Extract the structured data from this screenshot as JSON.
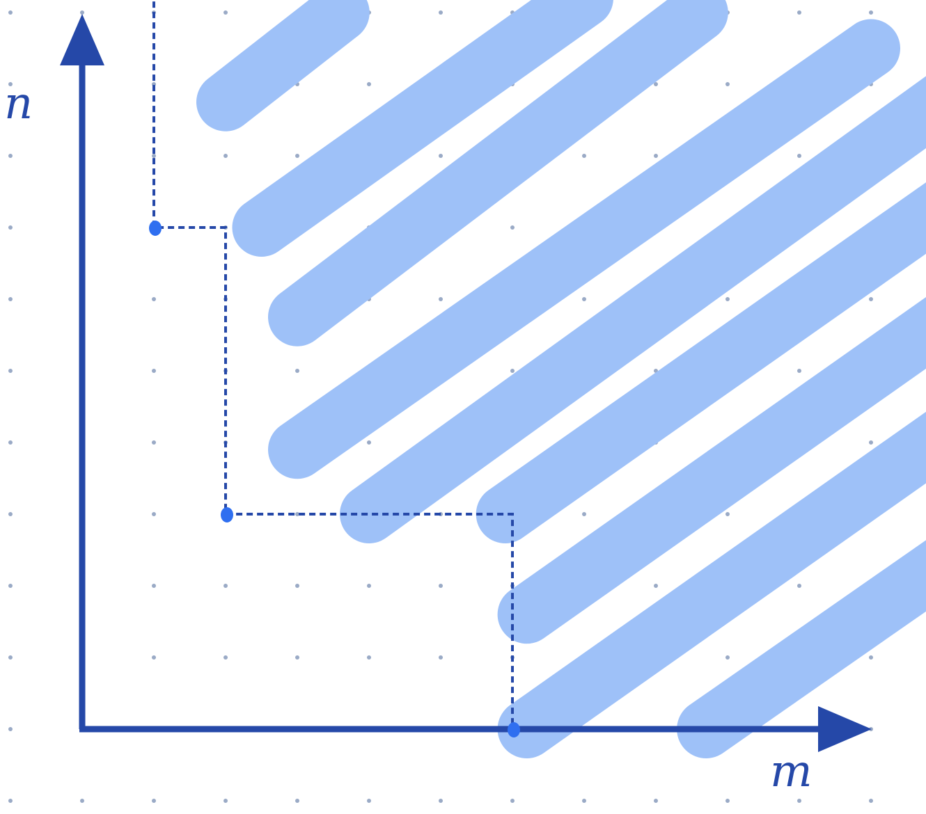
{
  "axes": {
    "vertical_label": "n",
    "horizontal_label": "m"
  },
  "grid": {
    "columns": 13,
    "rows": 12,
    "style": "dotted"
  },
  "colors": {
    "axis": "#2548a8",
    "band": "#9ec1f8",
    "grid_dot": "#9aaac6",
    "path": "#2548a8",
    "marker": "#2f6ff0",
    "background": "#ffffff"
  },
  "bands": [
    {
      "from": [
        2,
        8.75
      ],
      "to": [
        3.6,
        10
      ]
    },
    {
      "from": [
        2.5,
        7
      ],
      "to": [
        7,
        10.2
      ]
    },
    {
      "from": [
        3,
        5.75
      ],
      "to": [
        8.6,
        10
      ]
    },
    {
      "from": [
        3,
        3.9
      ],
      "to": [
        11,
        9.5
      ]
    },
    {
      "from": [
        4,
        3
      ],
      "to": [
        13,
        9.5
      ]
    },
    {
      "from": [
        5.9,
        3
      ],
      "to": [
        13,
        8
      ]
    },
    {
      "from": [
        6.2,
        1.6
      ],
      "to": [
        13,
        6.4
      ]
    },
    {
      "from": [
        6.2,
        0
      ],
      "to": [
        13,
        4.8
      ]
    },
    {
      "from": [
        8.7,
        0
      ],
      "to": [
        13,
        3
      ]
    }
  ],
  "staircase": [
    [
      1,
      10.3
    ],
    [
      1,
      7
    ],
    [
      2,
      7
    ],
    [
      2,
      3
    ],
    [
      6,
      3
    ],
    [
      6,
      0
    ]
  ],
  "markers": [
    [
      1,
      7
    ],
    [
      2,
      3
    ],
    [
      6,
      0
    ]
  ]
}
